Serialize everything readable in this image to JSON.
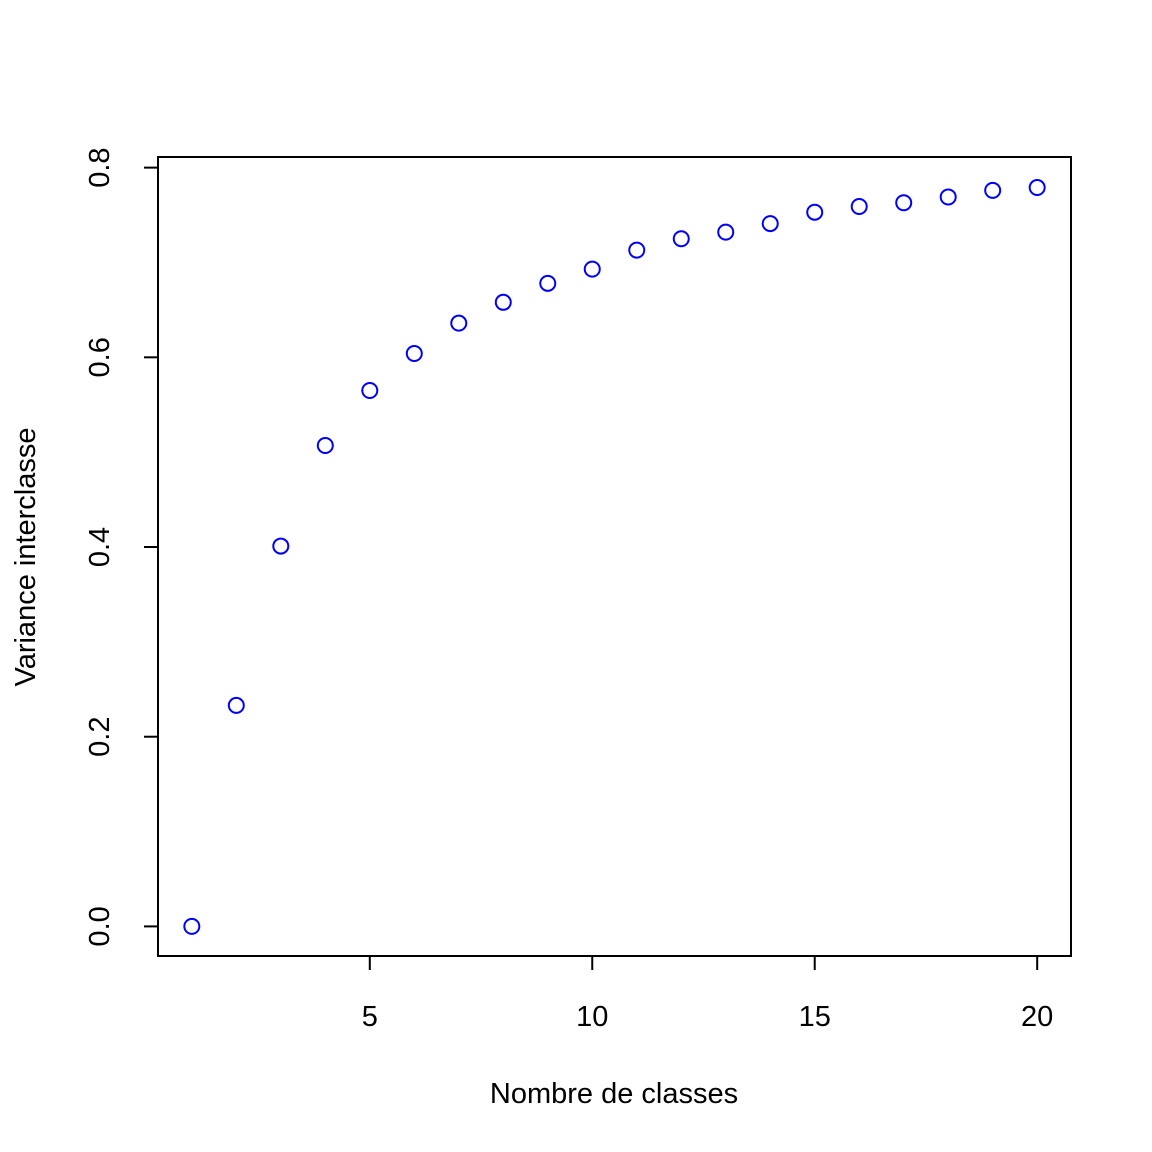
{
  "chart_data": {
    "type": "scatter",
    "title": "",
    "xlabel": "Nombre de classes",
    "ylabel": "Variance interclasse",
    "xlim": [
      0.24,
      20.76
    ],
    "ylim": [
      -0.0312,
      0.8112
    ],
    "x_ticks": [
      5,
      10,
      15,
      20
    ],
    "x_tick_labels": [
      "5",
      "10",
      "15",
      "20"
    ],
    "y_ticks": [
      0.0,
      0.2,
      0.4,
      0.6,
      0.8
    ],
    "y_tick_labels": [
      "0.0",
      "0.2",
      "0.4",
      "0.6",
      "0.8"
    ],
    "grid": false,
    "legend": "none",
    "marker": "open-circle",
    "colors": {
      "points": "#0000ff",
      "axes": "#000000"
    },
    "series": [
      {
        "x": [
          1,
          2,
          3,
          4,
          5,
          6,
          7,
          8,
          9,
          10,
          11,
          12,
          13,
          14,
          15,
          16,
          17,
          18,
          19,
          20
        ],
        "y": [
          0.0,
          0.233,
          0.401,
          0.507,
          0.565,
          0.604,
          0.636,
          0.658,
          0.678,
          0.693,
          0.713,
          0.725,
          0.732,
          0.741,
          0.753,
          0.759,
          0.763,
          0.769,
          0.776,
          0.779
        ]
      }
    ]
  }
}
